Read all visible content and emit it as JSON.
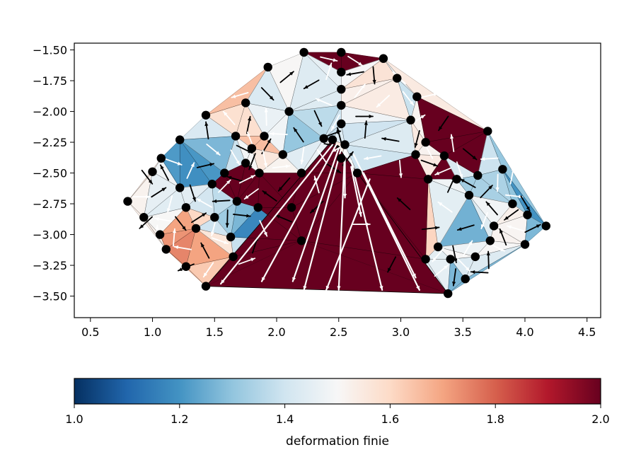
{
  "chart_data": {
    "type": "triangulated-mesh",
    "title": "",
    "xlabel": "",
    "ylabel": "",
    "xlim": [
      0.37,
      4.61
    ],
    "ylim": [
      -3.675,
      -1.445
    ],
    "xticks": [
      0.5,
      1.0,
      1.5,
      2.0,
      2.5,
      3.0,
      3.5,
      4.0,
      4.5
    ],
    "xtick_labels": [
      "0.5",
      "1.0",
      "1.5",
      "2.0",
      "2.5",
      "3.0",
      "3.5",
      "4.0",
      "4.5"
    ],
    "yticks": [
      -1.5,
      -1.75,
      -2.0,
      -2.25,
      -2.5,
      -2.75,
      -3.0,
      -3.25,
      -3.5
    ],
    "ytick_labels": [
      "−1.50",
      "−1.75",
      "−2.00",
      "−2.25",
      "−2.50",
      "−2.75",
      "−3.00",
      "−3.25",
      "−3.50"
    ],
    "grid": false,
    "colormap": "RdBu_r",
    "colorbar": {
      "range": [
        1.0,
        2.0
      ],
      "ticks": [
        1.0,
        1.2,
        1.4,
        1.6,
        1.8,
        2.0
      ],
      "tick_labels": [
        "1.0",
        "1.2",
        "1.4",
        "1.6",
        "1.8",
        "2.0"
      ],
      "label": "deformation finie",
      "orientation": "horizontal",
      "colors": [
        "#053061",
        "#2166ac",
        "#4393c3",
        "#92c5de",
        "#d1e5f0",
        "#f7f7f7",
        "#fddbc7",
        "#f4a582",
        "#d6604d",
        "#b2182b",
        "#67001f"
      ]
    },
    "points": [
      [
        0.8,
        -2.73
      ],
      [
        0.93,
        -2.86
      ],
      [
        1.0,
        -2.49
      ],
      [
        1.06,
        -3.0
      ],
      [
        1.11,
        -3.12
      ],
      [
        1.07,
        -2.38
      ],
      [
        1.22,
        -2.23
      ],
      [
        1.27,
        -3.26
      ],
      [
        1.27,
        -2.78
      ],
      [
        1.22,
        -2.62
      ],
      [
        1.43,
        -3.42
      ],
      [
        1.43,
        -2.03
      ],
      [
        1.48,
        -2.59
      ],
      [
        1.5,
        -2.86
      ],
      [
        1.58,
        -2.5
      ],
      [
        1.63,
        -3.02
      ],
      [
        1.65,
        -3.18
      ],
      [
        1.67,
        -2.2
      ],
      [
        1.68,
        -2.73
      ],
      [
        1.75,
        -1.93
      ],
      [
        1.85,
        -2.78
      ],
      [
        1.86,
        -2.5
      ],
      [
        1.9,
        -2.2
      ],
      [
        1.75,
        -2.42
      ],
      [
        1.8,
        -2.3
      ],
      [
        1.93,
        -1.64
      ],
      [
        2.05,
        -2.35
      ],
      [
        2.12,
        -2.78
      ],
      [
        2.2,
        -2.5
      ],
      [
        2.1,
        -2.0
      ],
      [
        2.22,
        -1.52
      ],
      [
        2.38,
        -2.22
      ],
      [
        2.45,
        -2.23
      ],
      [
        2.52,
        -1.52
      ],
      [
        2.52,
        -1.68
      ],
      [
        2.52,
        -1.82
      ],
      [
        2.52,
        -1.95
      ],
      [
        2.52,
        -2.1
      ],
      [
        2.55,
        -2.27
      ],
      [
        2.86,
        -1.57
      ],
      [
        2.97,
        -1.73
      ],
      [
        3.13,
        -1.88
      ],
      [
        3.08,
        -2.07
      ],
      [
        3.12,
        -2.35
      ],
      [
        3.2,
        -2.25
      ],
      [
        3.35,
        -2.36
      ],
      [
        3.22,
        -2.55
      ],
      [
        3.45,
        -2.55
      ],
      [
        3.55,
        -2.68
      ],
      [
        3.62,
        -2.52
      ],
      [
        3.7,
        -2.16
      ],
      [
        3.82,
        -2.47
      ],
      [
        3.9,
        -2.75
      ],
      [
        3.75,
        -2.93
      ],
      [
        4.02,
        -2.84
      ],
      [
        4.17,
        -2.93
      ],
      [
        4.0,
        -3.08
      ],
      [
        3.72,
        -3.05
      ],
      [
        3.6,
        -3.18
      ],
      [
        3.4,
        -3.2
      ],
      [
        3.2,
        -3.2
      ],
      [
        3.3,
        -3.1
      ],
      [
        3.52,
        -3.36
      ],
      [
        3.38,
        -3.48
      ],
      [
        2.52,
        -2.38
      ],
      [
        2.2,
        -3.05
      ],
      [
        2.65,
        -2.5
      ],
      [
        1.35,
        -2.95
      ]
    ],
    "colorbar_values": {
      "boundary_regions": [
        1.45,
        1.2,
        1.7,
        1.4,
        1.75,
        1.35,
        1.1,
        1.45,
        1.7,
        1.3,
        1.55,
        1.8,
        1.4,
        1.25
      ],
      "central_triangle": 2.0,
      "upper_right_band": 2.0,
      "top_wedge": 2.0
    }
  }
}
